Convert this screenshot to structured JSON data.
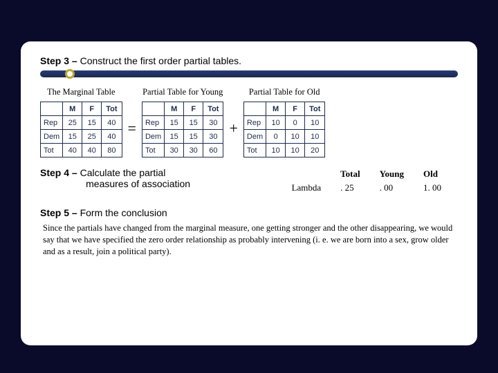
{
  "colors": {
    "page_bg": "#0a0a2a",
    "slide_bg": "#ffffff",
    "bar_top": "#2a3a7a",
    "bar_bottom": "#1a2a4a",
    "dot_border": "#b8a830",
    "table_border": "#1a2a4a",
    "table_text": "#1a2a4a"
  },
  "fonts": {
    "sans": "Arial",
    "serif": "Times New Roman",
    "step_size": 14,
    "caption_size": 12.5,
    "cell_size": 11,
    "summary_size": 13,
    "conclusion_size": 12.5,
    "op_size": 22
  },
  "step3": {
    "label": "Step 3 –",
    "text": "Construct the first order partial tables."
  },
  "operators": {
    "eq": "=",
    "plus": "+"
  },
  "tables": {
    "marginal": {
      "caption": "The Marginal Table",
      "columns": [
        "",
        "M",
        "F",
        "Tot"
      ],
      "rows": [
        [
          "Rep",
          "25",
          "15",
          "40"
        ],
        [
          "Dem",
          "15",
          "25",
          "40"
        ],
        [
          "Tot",
          "40",
          "40",
          "80"
        ]
      ]
    },
    "young": {
      "caption": "Partial Table for Young",
      "columns": [
        "",
        "M",
        "F",
        "Tot"
      ],
      "rows": [
        [
          "Rep",
          "15",
          "15",
          "30"
        ],
        [
          "Dem",
          "15",
          "15",
          "30"
        ],
        [
          "Tot",
          "30",
          "30",
          "60"
        ]
      ]
    },
    "old": {
      "caption": "Partial Table for Old",
      "columns": [
        "",
        "M",
        "F",
        "Tot"
      ],
      "rows": [
        [
          "Rep",
          "10",
          "0",
          "10"
        ],
        [
          "Dem",
          "0",
          "10",
          "10"
        ],
        [
          "Tot",
          "10",
          "10",
          "20"
        ]
      ]
    }
  },
  "step4": {
    "label": "Step 4 –",
    "text_l1": "Calculate the partial",
    "text_l2": "measures of association"
  },
  "summary": {
    "columns": [
      "",
      "Total",
      "Young",
      "Old"
    ],
    "row": [
      "Lambda",
      ". 25",
      ". 00",
      "1. 00"
    ]
  },
  "step5": {
    "label": "Step 5 –",
    "text": "Form the conclusion"
  },
  "conclusion": "Since the partials have changed from the marginal measure, one getting stronger and the other disappearing, we would say that we have specified the zero order relationship as probably intervening (i. e. we are born into a sex, grow older and as a result, join a political party)."
}
